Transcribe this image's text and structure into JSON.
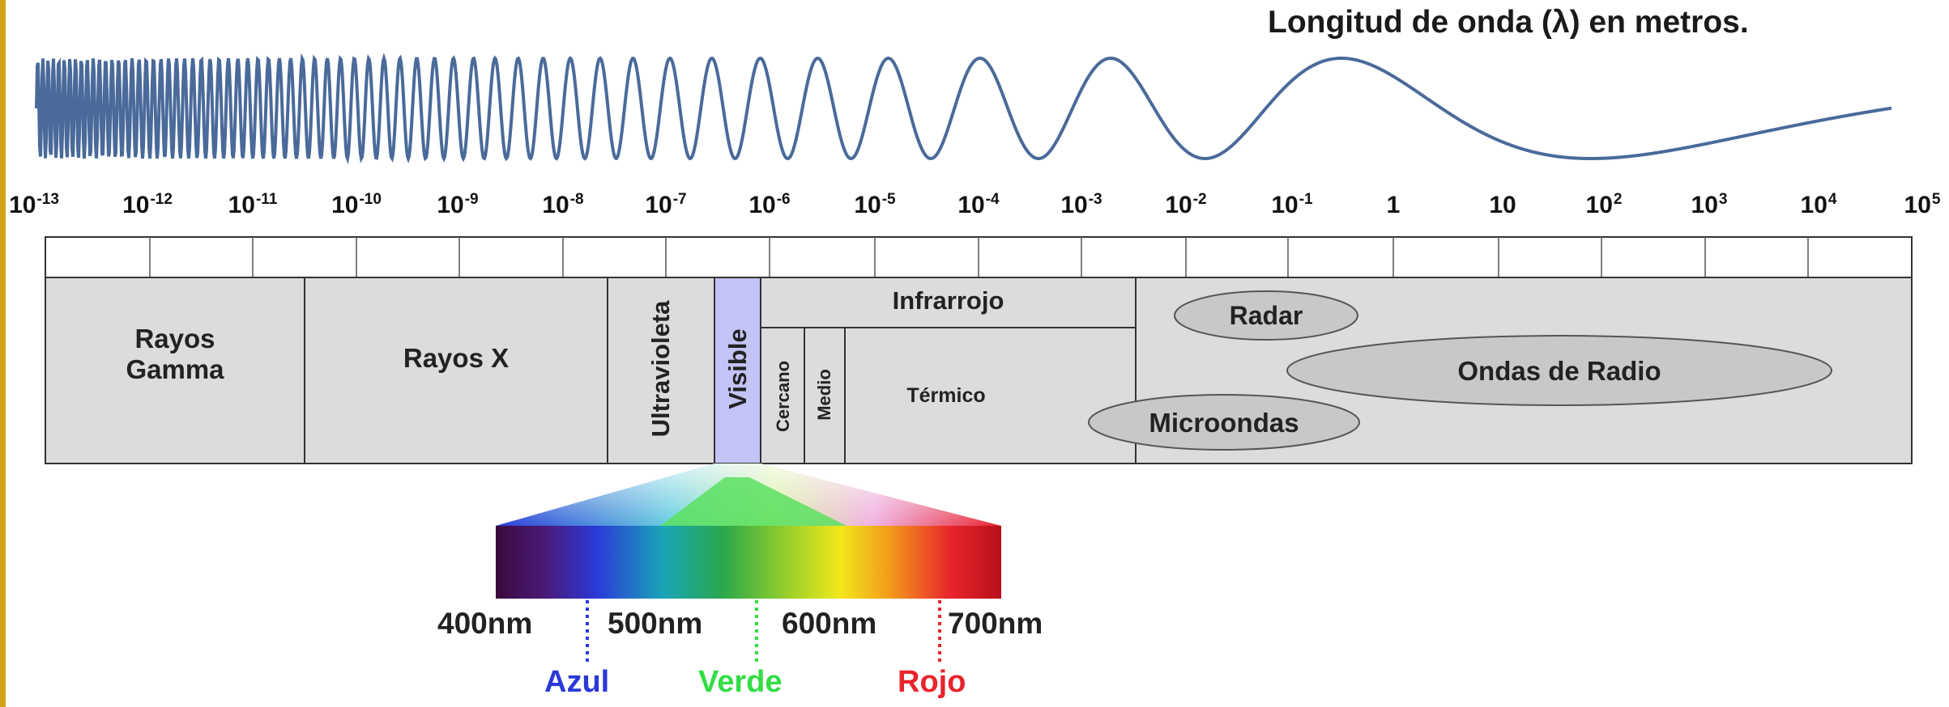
{
  "title": "Longitud de onda (λ) en metros.",
  "scale_ticks": [
    {
      "base": "10",
      "exp": "-13"
    },
    {
      "base": "10",
      "exp": "-12"
    },
    {
      "base": "10",
      "exp": "-11"
    },
    {
      "base": "10",
      "exp": "-10"
    },
    {
      "base": "10",
      "exp": "-9"
    },
    {
      "base": "10",
      "exp": "-8"
    },
    {
      "base": "10",
      "exp": "-7"
    },
    {
      "base": "10",
      "exp": "-6"
    },
    {
      "base": "10",
      "exp": "-5"
    },
    {
      "base": "10",
      "exp": "-4"
    },
    {
      "base": "10",
      "exp": "-3"
    },
    {
      "base": "10",
      "exp": "-2"
    },
    {
      "base": "10",
      "exp": "-1"
    },
    {
      "base": "1",
      "exp": ""
    },
    {
      "base": "10",
      "exp": ""
    },
    {
      "base": "10",
      "exp": "2"
    },
    {
      "base": "10",
      "exp": "3"
    },
    {
      "base": "10",
      "exp": "4"
    },
    {
      "base": "10",
      "exp": "5"
    }
  ],
  "regions": {
    "gamma": "Rayos\nGamma",
    "xray": "Rayos X",
    "ultraviolet": "Ultravioleta",
    "visible": "Visible",
    "infrared": "Infrarrojo",
    "ir_near": "Cercano",
    "ir_medium": "Medio",
    "ir_thermal": "Térmico",
    "radar": "Radar",
    "radio": "Ondas de Radio",
    "microwave": "Microondas"
  },
  "visible_scale": [
    "400nm",
    "500nm",
    "600nm",
    "700nm"
  ],
  "colors": [
    {
      "name": "Azul",
      "hex": "#2a3ad8"
    },
    {
      "name": "Verde",
      "hex": "#33dd44"
    },
    {
      "name": "Rojo",
      "hex": "#e8242c"
    }
  ],
  "palette": {
    "wave": "#4a6a9a",
    "band_fill": "#dcdcdc",
    "visible_fill": "#c3c3f5",
    "ellipse_fill": "#c8c8c8",
    "accent_bar": "#d4a017"
  }
}
